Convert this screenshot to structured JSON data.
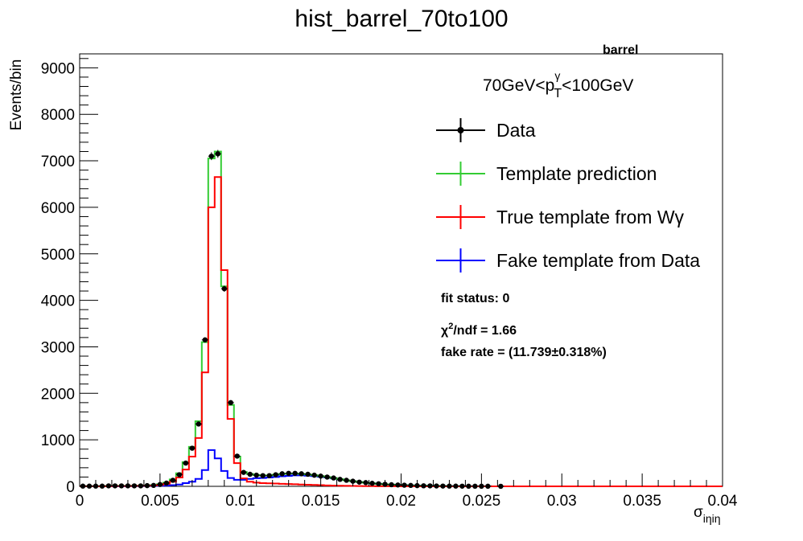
{
  "chart_data": {
    "type": "histogram",
    "title": "hist_barrel_70to100",
    "xlabel": "σ",
    "xlabel_sub": "iηiη",
    "ylabel": "Events/bin",
    "xlim": [
      0,
      0.04
    ],
    "ylim": [
      0,
      9300
    ],
    "x_ticks": [
      "0",
      "0.005",
      "0.01",
      "0.015",
      "0.02",
      "0.025",
      "0.03",
      "0.035",
      "0.04"
    ],
    "x_tick_values": [
      0,
      0.005,
      0.01,
      0.015,
      0.02,
      0.025,
      0.03,
      0.035,
      0.04
    ],
    "y_ticks": [
      "0",
      "1000",
      "2000",
      "3000",
      "4000",
      "5000",
      "6000",
      "7000",
      "8000",
      "9000"
    ],
    "y_tick_values": [
      0,
      1000,
      2000,
      3000,
      4000,
      5000,
      6000,
      7000,
      8000,
      9000
    ],
    "bin_width": 0.0004,
    "region_label": "barrel",
    "pt_label": {
      "prefix": "70GeV<p",
      "sup": "γ",
      "sub": "T",
      "suffix": "<100GeV"
    },
    "legend": [
      {
        "label": "Data",
        "color": "#000000",
        "style": "marker"
      },
      {
        "label": "Template prediction",
        "color": "#33cc33",
        "style": "line"
      },
      {
        "label": "True template from Wγ",
        "color": "#ff0000",
        "style": "line"
      },
      {
        "label": "Fake template from Data",
        "color": "#0000ff",
        "style": "line"
      }
    ],
    "fit_status": "fit status: 0",
    "chi2": {
      "prefix": "χ",
      "sup": "2",
      "suffix": "/ndf = 1.66"
    },
    "fake_rate": "fake rate = (11.739±0.318%)",
    "series": [
      {
        "name": "Data",
        "color": "#000000",
        "x": [
          0.0002,
          0.0006,
          0.001,
          0.0014,
          0.0018,
          0.0022,
          0.0026,
          0.003,
          0.0034,
          0.0038,
          0.0042,
          0.0046,
          0.005,
          0.0054,
          0.0058,
          0.0062,
          0.0066,
          0.007,
          0.0074,
          0.0078,
          0.0082,
          0.0086,
          0.009,
          0.0094,
          0.0098,
          0.0102,
          0.0106,
          0.011,
          0.0114,
          0.0118,
          0.0122,
          0.0126,
          0.013,
          0.0134,
          0.0138,
          0.0142,
          0.0146,
          0.015,
          0.0154,
          0.0158,
          0.0162,
          0.0166,
          0.017,
          0.0174,
          0.0178,
          0.0182,
          0.0186,
          0.019,
          0.0194,
          0.0198,
          0.0202,
          0.0206,
          0.021,
          0.0214,
          0.0218,
          0.0222,
          0.0226,
          0.023,
          0.0234,
          0.0238,
          0.0242,
          0.0246,
          0.025,
          0.0254,
          0.0262
        ],
        "y": [
          5,
          5,
          5,
          5,
          10,
          10,
          10,
          10,
          10,
          10,
          15,
          20,
          40,
          70,
          130,
          250,
          500,
          820,
          1340,
          3150,
          7100,
          7150,
          4250,
          1800,
          650,
          300,
          260,
          240,
          230,
          230,
          250,
          270,
          280,
          280,
          270,
          260,
          240,
          220,
          200,
          180,
          150,
          130,
          110,
          90,
          80,
          65,
          55,
          45,
          35,
          30,
          25,
          20,
          15,
          12,
          10,
          8,
          6,
          5,
          5,
          4,
          3,
          3,
          2,
          2,
          1
        ]
      },
      {
        "name": "Template prediction",
        "color": "#33cc33",
        "x": [
          0.0002,
          0.0006,
          0.001,
          0.0014,
          0.0018,
          0.0022,
          0.0026,
          0.003,
          0.0034,
          0.0038,
          0.0042,
          0.0046,
          0.005,
          0.0054,
          0.0058,
          0.0062,
          0.0066,
          0.007,
          0.0074,
          0.0078,
          0.0082,
          0.0086,
          0.009,
          0.0094,
          0.0098,
          0.0102,
          0.0106,
          0.011,
          0.0114,
          0.0118,
          0.0122,
          0.0126,
          0.013,
          0.0134,
          0.0138,
          0.0142,
          0.0146,
          0.015,
          0.0154,
          0.0158,
          0.0162,
          0.0166,
          0.017,
          0.0174,
          0.0178,
          0.0182,
          0.0186,
          0.019,
          0.0194,
          0.0198,
          0.0202,
          0.0206,
          0.021,
          0.0214,
          0.0218,
          0.0222,
          0.0226,
          0.023,
          0.0234,
          0.0238,
          0.0242,
          0.0246,
          0.025,
          0.0254,
          0.0258
        ],
        "y": [
          5,
          5,
          5,
          5,
          8,
          10,
          10,
          10,
          12,
          14,
          18,
          25,
          45,
          80,
          150,
          280,
          520,
          850,
          1400,
          3100,
          7050,
          7200,
          4300,
          1750,
          640,
          310,
          265,
          245,
          235,
          235,
          250,
          265,
          275,
          275,
          265,
          255,
          240,
          220,
          200,
          180,
          155,
          130,
          110,
          92,
          78,
          64,
          54,
          44,
          36,
          30,
          24,
          19,
          15,
          12,
          10,
          8,
          6,
          5,
          4,
          4,
          3,
          3,
          2,
          2,
          1
        ]
      },
      {
        "name": "True template from Wγ",
        "color": "#ff0000",
        "x": [
          0.0002,
          0.0006,
          0.001,
          0.0014,
          0.0018,
          0.0022,
          0.0026,
          0.003,
          0.0034,
          0.0038,
          0.0042,
          0.0046,
          0.005,
          0.0054,
          0.0058,
          0.0062,
          0.0066,
          0.007,
          0.0074,
          0.0078,
          0.0082,
          0.0086,
          0.009,
          0.0094,
          0.0098,
          0.0102,
          0.0106,
          0.011,
          0.0114,
          0.0118,
          0.0122,
          0.0126,
          0.013,
          0.0134,
          0.0138,
          0.0142,
          0.0146,
          0.015,
          0.0154,
          0.0158,
          0.0162,
          0.0166,
          0.017,
          0.0174,
          0.0178,
          0.0182,
          0.0186,
          0.019,
          0.0194,
          0.0198,
          0.0202,
          0.0206,
          0.021,
          0.0214,
          0.0218,
          0.0222,
          0.0226,
          0.023,
          0.0234,
          0.0238,
          0.0242,
          0.0246,
          0.025,
          0.0254,
          0.0258
        ],
        "y": [
          3,
          3,
          3,
          3,
          5,
          6,
          6,
          6,
          8,
          10,
          12,
          18,
          30,
          55,
          100,
          190,
          360,
          640,
          1040,
          2450,
          6000,
          6650,
          4650,
          1450,
          500,
          170,
          100,
          80,
          70,
          65,
          60,
          55,
          50,
          45,
          40,
          35,
          30,
          25,
          20,
          16,
          13,
          10,
          8,
          6,
          5,
          4,
          3,
          3,
          2,
          2,
          1,
          1,
          1,
          1,
          1,
          0,
          0,
          0,
          0,
          0,
          0,
          0,
          0,
          0,
          0
        ]
      },
      {
        "name": "Fake template from Data",
        "color": "#0000ff",
        "x": [
          0.0002,
          0.0006,
          0.001,
          0.0014,
          0.0018,
          0.0022,
          0.0026,
          0.003,
          0.0034,
          0.0038,
          0.0042,
          0.0046,
          0.005,
          0.0054,
          0.0058,
          0.0062,
          0.0066,
          0.007,
          0.0074,
          0.0078,
          0.0082,
          0.0086,
          0.009,
          0.0094,
          0.0098,
          0.0102,
          0.0106,
          0.011,
          0.0114,
          0.0118,
          0.0122,
          0.0126,
          0.013,
          0.0134,
          0.0138,
          0.0142,
          0.0146,
          0.015,
          0.0154,
          0.0158,
          0.0162,
          0.0166,
          0.017,
          0.0174,
          0.0178,
          0.0182,
          0.0186,
          0.019,
          0.0194,
          0.0198,
          0.0202,
          0.0206,
          0.021,
          0.0214,
          0.0218,
          0.0222,
          0.0226,
          0.023,
          0.0234,
          0.0238,
          0.0242,
          0.0246,
          0.025,
          0.0254,
          0.0258
        ],
        "y": [
          2,
          2,
          2,
          2,
          3,
          3,
          3,
          4,
          4,
          5,
          6,
          8,
          10,
          15,
          25,
          40,
          70,
          100,
          160,
          350,
          780,
          600,
          330,
          180,
          140,
          140,
          160,
          175,
          180,
          190,
          200,
          215,
          225,
          235,
          235,
          230,
          220,
          205,
          190,
          170,
          150,
          130,
          110,
          92,
          78,
          64,
          54,
          44,
          36,
          30,
          24,
          19,
          15,
          12,
          10,
          8,
          6,
          5,
          4,
          4,
          3,
          3,
          2,
          2,
          1
        ]
      }
    ]
  }
}
